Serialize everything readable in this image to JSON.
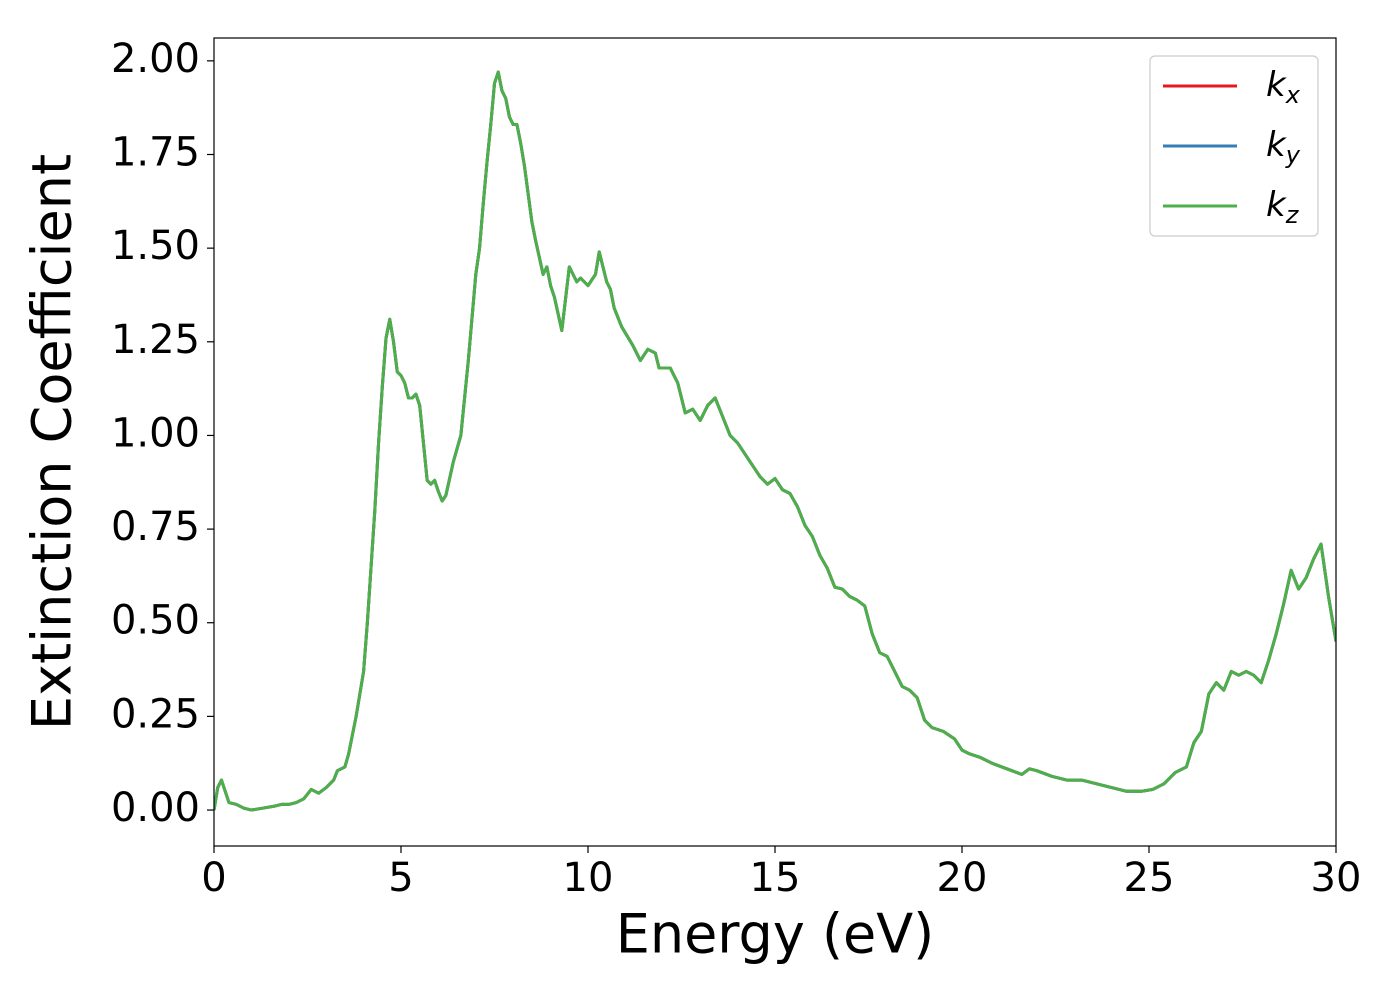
{
  "chart_data": {
    "type": "line",
    "xlabel": "Energy (eV)",
    "ylabel": "Extinction Coefficient",
    "xlim": [
      0,
      30
    ],
    "ylim": [
      -0.096,
      2.061
    ],
    "xticks": [
      0,
      5,
      10,
      15,
      20,
      25,
      30
    ],
    "yticks": [
      {
        "value": 0,
        "label": "0.00"
      },
      {
        "value": 0.25,
        "label": "0.25"
      },
      {
        "value": 0.5,
        "label": "0.50"
      },
      {
        "value": 0.75,
        "label": "0.75"
      },
      {
        "value": 1,
        "label": "1.00"
      },
      {
        "value": 1.25,
        "label": "1.25"
      },
      {
        "value": 1.5,
        "label": "1.50"
      },
      {
        "value": 1.75,
        "label": "1.75"
      },
      {
        "value": 2,
        "label": "2.00"
      }
    ],
    "legend": "upper right",
    "x": [
      0,
      0.1,
      0.2,
      0.3,
      0.4,
      0.6,
      0.8,
      1.0,
      1.3,
      1.6,
      1.8,
      2.0,
      2.2,
      2.4,
      2.6,
      2.8,
      3.0,
      3.2,
      3.3,
      3.5,
      3.6,
      3.8,
      4.0,
      4.1,
      4.2,
      4.3,
      4.4,
      4.5,
      4.6,
      4.7,
      4.8,
      4.9,
      5.0,
      5.1,
      5.2,
      5.3,
      5.4,
      5.5,
      5.6,
      5.7,
      5.8,
      5.9,
      6.0,
      6.1,
      6.2,
      6.4,
      6.6,
      6.8,
      7.0,
      7.1,
      7.2,
      7.3,
      7.4,
      7.5,
      7.6,
      7.7,
      7.8,
      7.9,
      8.0,
      8.1,
      8.2,
      8.3,
      8.5,
      8.6,
      8.8,
      8.9,
      9.0,
      9.1,
      9.3,
      9.5,
      9.6,
      9.7,
      9.8,
      10.0,
      10.2,
      10.3,
      10.4,
      10.5,
      10.6,
      10.7,
      10.9,
      11.2,
      11.4,
      11.6,
      11.8,
      11.9,
      12.2,
      12.4,
      12.6,
      12.8,
      13.0,
      13.2,
      13.4,
      13.6,
      13.8,
      14.0,
      14.2,
      14.4,
      14.6,
      14.8,
      15.0,
      15.2,
      15.4,
      15.6,
      15.8,
      16.0,
      16.2,
      16.4,
      16.6,
      16.8,
      17.0,
      17.2,
      17.4,
      17.6,
      17.8,
      18.0,
      18.2,
      18.4,
      18.6,
      18.8,
      19.0,
      19.2,
      19.5,
      19.8,
      20.0,
      20.2,
      20.5,
      20.8,
      21.2,
      21.6,
      21.8,
      22.0,
      22.4,
      22.8,
      23.2,
      23.6,
      24.0,
      24.4,
      24.8,
      25.1,
      25.4,
      25.7,
      26.0,
      26.2,
      26.4,
      26.6,
      26.8,
      27.0,
      27.2,
      27.4,
      27.6,
      27.8,
      28.0,
      28.2,
      28.4,
      28.6,
      28.8,
      29.0,
      29.2,
      29.4,
      29.6,
      29.8,
      30.0
    ],
    "series": [
      {
        "name": "k_x",
        "color": "#e41a1c",
        "values": [
          0.0,
          0.06,
          0.08,
          0.05,
          0.02,
          0.015,
          0.005,
          0.0,
          0.005,
          0.01,
          0.015,
          0.015,
          0.02,
          0.03,
          0.055,
          0.045,
          0.06,
          0.08,
          0.105,
          0.115,
          0.15,
          0.25,
          0.37,
          0.5,
          0.65,
          0.8,
          0.98,
          1.13,
          1.26,
          1.31,
          1.25,
          1.17,
          1.16,
          1.14,
          1.1,
          1.1,
          1.11,
          1.08,
          0.98,
          0.88,
          0.87,
          0.88,
          0.85,
          0.825,
          0.84,
          0.93,
          1.0,
          1.2,
          1.43,
          1.5,
          1.62,
          1.73,
          1.83,
          1.94,
          1.97,
          1.92,
          1.9,
          1.85,
          1.83,
          1.83,
          1.78,
          1.72,
          1.57,
          1.52,
          1.43,
          1.45,
          1.4,
          1.37,
          1.28,
          1.45,
          1.43,
          1.41,
          1.42,
          1.4,
          1.43,
          1.49,
          1.45,
          1.41,
          1.39,
          1.34,
          1.29,
          1.24,
          1.2,
          1.23,
          1.22,
          1.18,
          1.18,
          1.14,
          1.06,
          1.07,
          1.04,
          1.08,
          1.1,
          1.05,
          1.0,
          0.98,
          0.95,
          0.92,
          0.89,
          0.87,
          0.885,
          0.855,
          0.845,
          0.81,
          0.76,
          0.73,
          0.68,
          0.645,
          0.595,
          0.59,
          0.57,
          0.56,
          0.545,
          0.47,
          0.42,
          0.41,
          0.37,
          0.33,
          0.32,
          0.3,
          0.24,
          0.22,
          0.21,
          0.19,
          0.16,
          0.15,
          0.14,
          0.125,
          0.11,
          0.095,
          0.11,
          0.105,
          0.09,
          0.08,
          0.08,
          0.07,
          0.06,
          0.05,
          0.05,
          0.055,
          0.07,
          0.1,
          0.115,
          0.18,
          0.21,
          0.31,
          0.34,
          0.32,
          0.37,
          0.36,
          0.37,
          0.36,
          0.34,
          0.4,
          0.47,
          0.55,
          0.64,
          0.59,
          0.62,
          0.67,
          0.71,
          0.57,
          0.45
        ]
      },
      {
        "name": "k_y",
        "color": "#377eb8",
        "values": [
          0.0,
          0.06,
          0.08,
          0.05,
          0.02,
          0.015,
          0.005,
          0.0,
          0.005,
          0.01,
          0.015,
          0.015,
          0.02,
          0.03,
          0.055,
          0.045,
          0.06,
          0.08,
          0.105,
          0.115,
          0.15,
          0.25,
          0.37,
          0.5,
          0.65,
          0.8,
          0.98,
          1.13,
          1.26,
          1.31,
          1.25,
          1.17,
          1.16,
          1.14,
          1.1,
          1.1,
          1.11,
          1.08,
          0.98,
          0.88,
          0.87,
          0.88,
          0.85,
          0.825,
          0.84,
          0.93,
          1.0,
          1.2,
          1.43,
          1.5,
          1.62,
          1.73,
          1.83,
          1.94,
          1.97,
          1.92,
          1.9,
          1.85,
          1.83,
          1.83,
          1.78,
          1.72,
          1.57,
          1.52,
          1.43,
          1.45,
          1.4,
          1.37,
          1.28,
          1.45,
          1.43,
          1.41,
          1.42,
          1.4,
          1.43,
          1.49,
          1.45,
          1.41,
          1.39,
          1.34,
          1.29,
          1.24,
          1.2,
          1.23,
          1.22,
          1.18,
          1.18,
          1.14,
          1.06,
          1.07,
          1.04,
          1.08,
          1.1,
          1.05,
          1.0,
          0.98,
          0.95,
          0.92,
          0.89,
          0.87,
          0.885,
          0.855,
          0.845,
          0.81,
          0.76,
          0.73,
          0.68,
          0.645,
          0.595,
          0.59,
          0.57,
          0.56,
          0.545,
          0.47,
          0.42,
          0.41,
          0.37,
          0.33,
          0.32,
          0.3,
          0.24,
          0.22,
          0.21,
          0.19,
          0.16,
          0.15,
          0.14,
          0.125,
          0.11,
          0.095,
          0.11,
          0.105,
          0.09,
          0.08,
          0.08,
          0.07,
          0.06,
          0.05,
          0.05,
          0.055,
          0.07,
          0.1,
          0.115,
          0.18,
          0.21,
          0.31,
          0.34,
          0.32,
          0.37,
          0.36,
          0.37,
          0.36,
          0.34,
          0.4,
          0.47,
          0.55,
          0.64,
          0.59,
          0.62,
          0.67,
          0.71,
          0.57,
          0.45
        ]
      },
      {
        "name": "k_z",
        "color": "#4daf4a",
        "values": [
          0.0,
          0.06,
          0.08,
          0.05,
          0.02,
          0.015,
          0.005,
          0.0,
          0.005,
          0.01,
          0.015,
          0.015,
          0.02,
          0.03,
          0.055,
          0.045,
          0.06,
          0.08,
          0.105,
          0.115,
          0.15,
          0.25,
          0.37,
          0.5,
          0.65,
          0.8,
          0.98,
          1.13,
          1.26,
          1.31,
          1.25,
          1.17,
          1.16,
          1.14,
          1.1,
          1.1,
          1.11,
          1.08,
          0.98,
          0.88,
          0.87,
          0.88,
          0.85,
          0.825,
          0.84,
          0.93,
          1.0,
          1.2,
          1.43,
          1.5,
          1.62,
          1.73,
          1.83,
          1.94,
          1.97,
          1.92,
          1.9,
          1.85,
          1.83,
          1.83,
          1.78,
          1.72,
          1.57,
          1.52,
          1.43,
          1.45,
          1.4,
          1.37,
          1.28,
          1.45,
          1.43,
          1.41,
          1.42,
          1.4,
          1.43,
          1.49,
          1.45,
          1.41,
          1.39,
          1.34,
          1.29,
          1.24,
          1.2,
          1.23,
          1.22,
          1.18,
          1.18,
          1.14,
          1.06,
          1.07,
          1.04,
          1.08,
          1.1,
          1.05,
          1.0,
          0.98,
          0.95,
          0.92,
          0.89,
          0.87,
          0.885,
          0.855,
          0.845,
          0.81,
          0.76,
          0.73,
          0.68,
          0.645,
          0.595,
          0.59,
          0.57,
          0.56,
          0.545,
          0.47,
          0.42,
          0.41,
          0.37,
          0.33,
          0.32,
          0.3,
          0.24,
          0.22,
          0.21,
          0.19,
          0.16,
          0.15,
          0.14,
          0.125,
          0.11,
          0.095,
          0.11,
          0.105,
          0.09,
          0.08,
          0.08,
          0.07,
          0.06,
          0.05,
          0.05,
          0.055,
          0.07,
          0.1,
          0.115,
          0.18,
          0.21,
          0.31,
          0.34,
          0.32,
          0.37,
          0.36,
          0.37,
          0.36,
          0.34,
          0.4,
          0.47,
          0.55,
          0.64,
          0.59,
          0.62,
          0.67,
          0.71,
          0.57,
          0.45
        ]
      }
    ]
  }
}
